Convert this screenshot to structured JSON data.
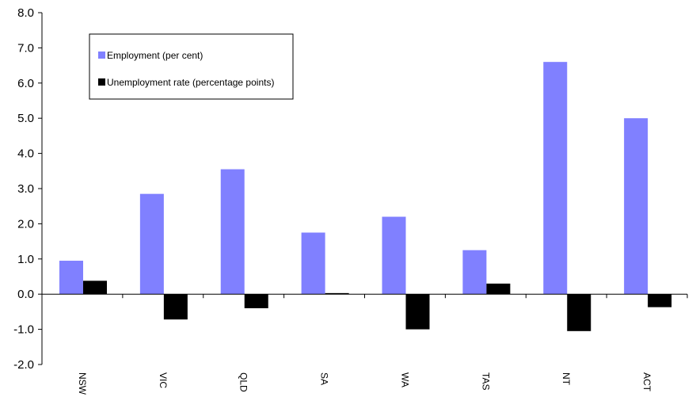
{
  "chart_data": {
    "type": "bar",
    "categories": [
      "NSW",
      "VIC",
      "QLD",
      "SA",
      "WA",
      "TAS",
      "NT",
      "ACT"
    ],
    "series": [
      {
        "name": "Employment (per cent)",
        "color": "#8080ff",
        "values": [
          0.95,
          2.85,
          3.55,
          1.75,
          2.2,
          1.25,
          6.6,
          5.0
        ]
      },
      {
        "name": "Unemployment rate (percentage points)",
        "color": "#000000",
        "values": [
          0.38,
          -0.72,
          -0.4,
          0.03,
          -1.0,
          0.3,
          -1.05,
          -0.37
        ]
      }
    ],
    "yticks": [
      "8.0",
      "7.0",
      "6.0",
      "5.0",
      "4.0",
      "3.0",
      "2.0",
      "1.0",
      "0.0",
      "-1.0",
      "-2.0"
    ],
    "ylim": [
      -2,
      8
    ],
    "grid": false,
    "legend_position": "top-left"
  }
}
